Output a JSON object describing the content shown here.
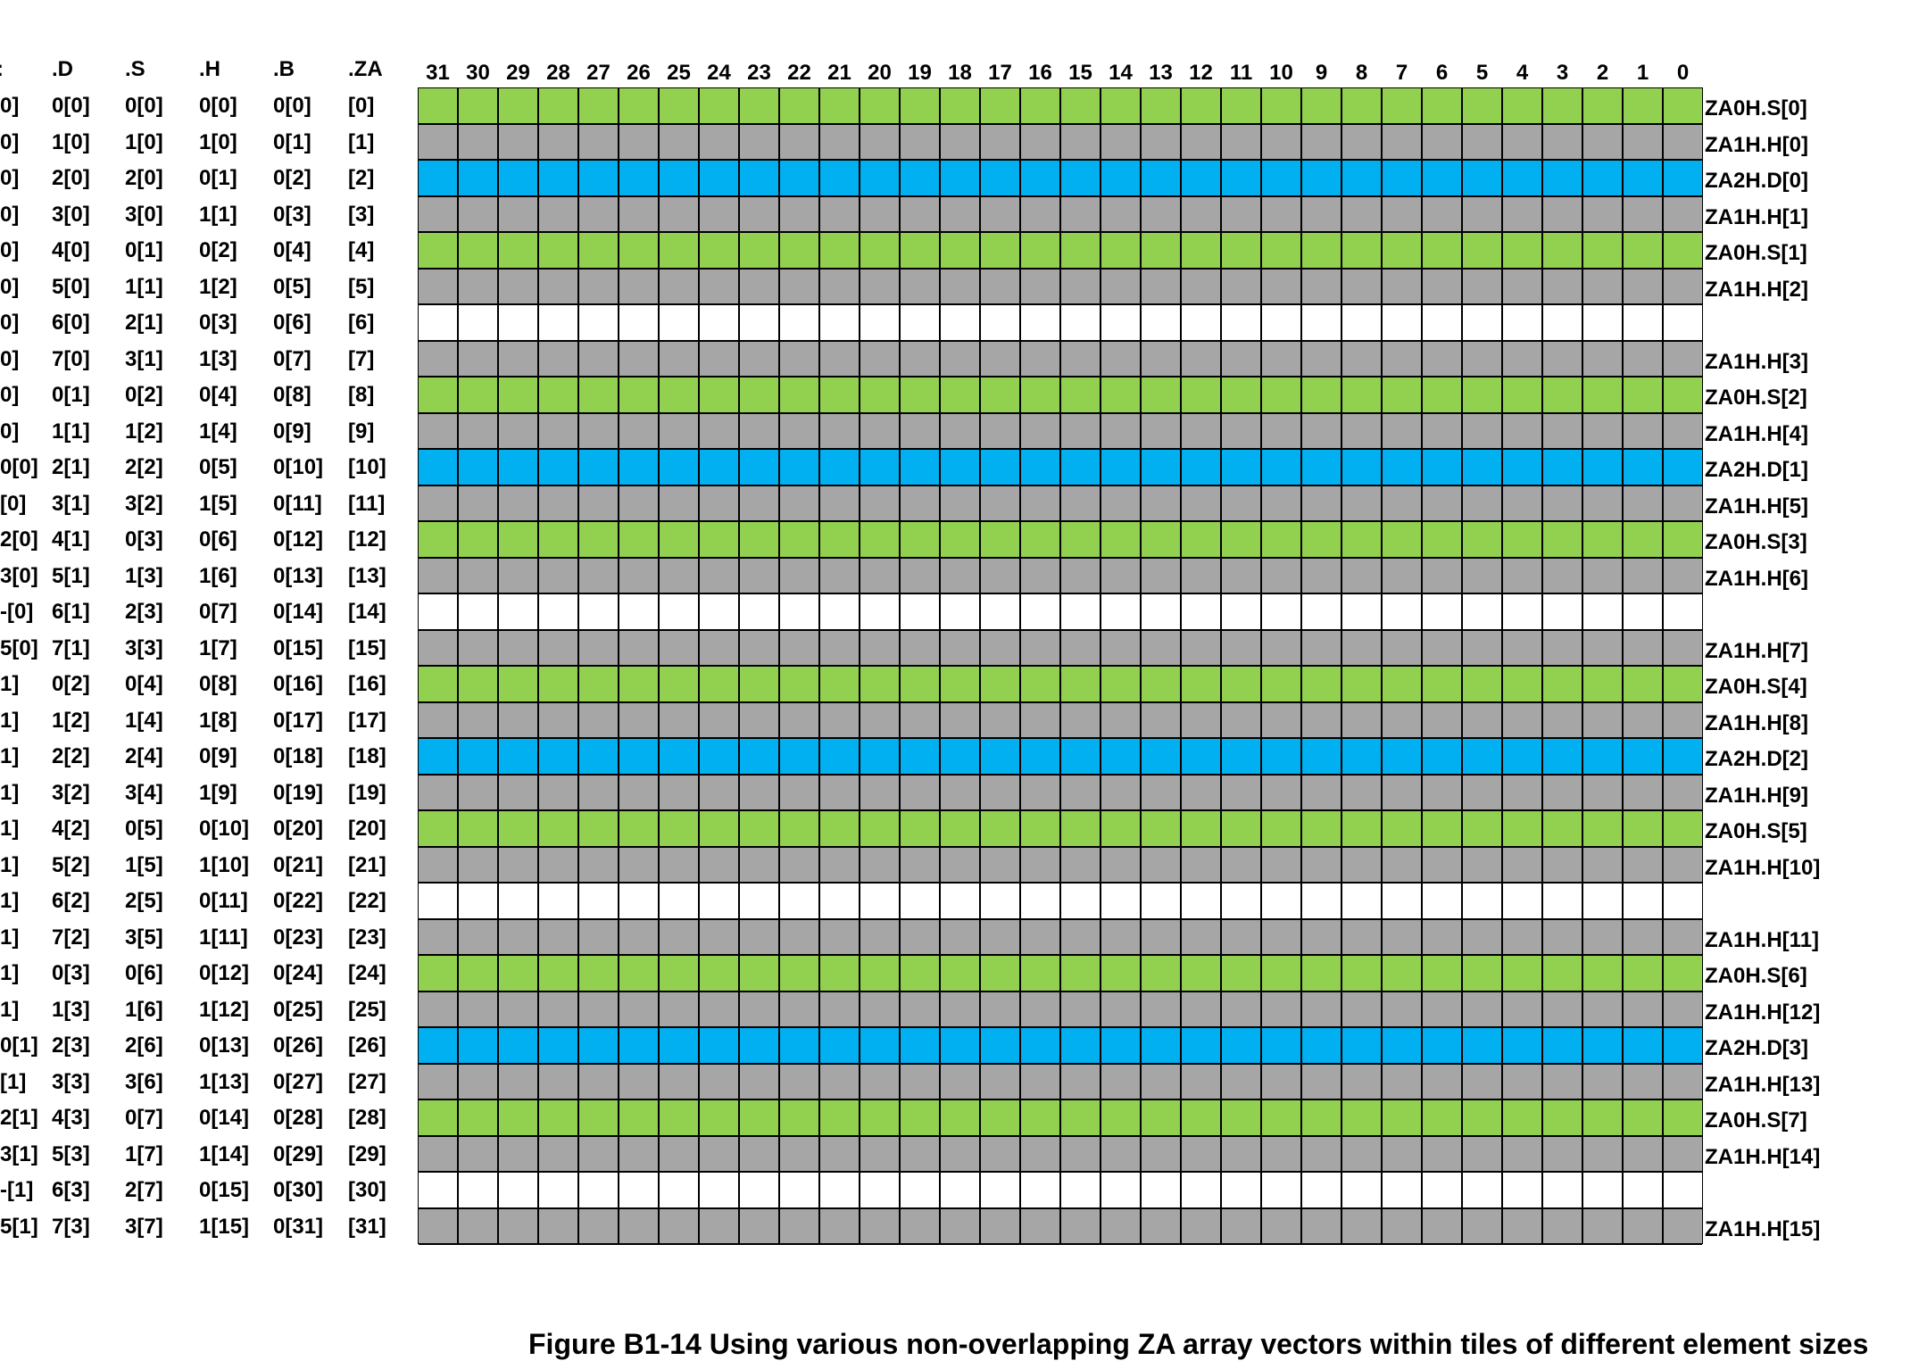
{
  "headers": [
    ".D",
    ".S",
    ".H",
    ".B",
    ".ZA"
  ],
  "bit_headers": [
    "31",
    "30",
    "29",
    "28",
    "27",
    "26",
    "25",
    "24",
    "23",
    "22",
    "21",
    "20",
    "19",
    "18",
    "17",
    "16",
    "15",
    "14",
    "13",
    "12",
    "11",
    "10",
    "9",
    "8",
    "7",
    "6",
    "5",
    "4",
    "3",
    "2",
    "1",
    "0"
  ],
  "rows": [
    {
      "q": "0]",
      "d": "0[0]",
      "s": "0[0]",
      "h": "0[0]",
      "b": "0[0]",
      "za": "[0]",
      "fill": "green",
      "label": "ZA0H.S[0]"
    },
    {
      "q": "0]",
      "d": "1[0]",
      "s": "1[0]",
      "h": "1[0]",
      "b": "0[1]",
      "za": "[1]",
      "fill": "gray",
      "label": "ZA1H.H[0]"
    },
    {
      "q": "0]",
      "d": "2[0]",
      "s": "2[0]",
      "h": "0[1]",
      "b": "0[2]",
      "za": "[2]",
      "fill": "blue",
      "label": "ZA2H.D[0]"
    },
    {
      "q": "0]",
      "d": "3[0]",
      "s": "3[0]",
      "h": "1[1]",
      "b": "0[3]",
      "za": "[3]",
      "fill": "gray",
      "label": "ZA1H.H[1]"
    },
    {
      "q": "0]",
      "d": "4[0]",
      "s": "0[1]",
      "h": "0[2]",
      "b": "0[4]",
      "za": "[4]",
      "fill": "green",
      "label": "ZA0H.S[1]"
    },
    {
      "q": "0]",
      "d": "5[0]",
      "s": "1[1]",
      "h": "1[2]",
      "b": "0[5]",
      "za": "[5]",
      "fill": "gray",
      "label": "ZA1H.H[2]"
    },
    {
      "q": "0]",
      "d": "6[0]",
      "s": "2[1]",
      "h": "0[3]",
      "b": "0[6]",
      "za": "[6]",
      "fill": "white",
      "label": ""
    },
    {
      "q": "0]",
      "d": "7[0]",
      "s": "3[1]",
      "h": "1[3]",
      "b": "0[7]",
      "za": "[7]",
      "fill": "gray",
      "label": "ZA1H.H[3]"
    },
    {
      "q": "0]",
      "d": "0[1]",
      "s": "0[2]",
      "h": "0[4]",
      "b": "0[8]",
      "za": "[8]",
      "fill": "green",
      "label": "ZA0H.S[2]"
    },
    {
      "q": "0]",
      "d": "1[1]",
      "s": "1[2]",
      "h": "1[4]",
      "b": "0[9]",
      "za": "[9]",
      "fill": "gray",
      "label": "ZA1H.H[4]"
    },
    {
      "q": "0[0]",
      "d": "2[1]",
      "s": "2[2]",
      "h": "0[5]",
      "b": "0[10]",
      "za": "[10]",
      "fill": "blue",
      "label": "ZA2H.D[1]"
    },
    {
      "q": "[0]",
      "d": "3[1]",
      "s": "3[2]",
      "h": "1[5]",
      "b": "0[11]",
      "za": "[11]",
      "fill": "gray",
      "label": "ZA1H.H[5]"
    },
    {
      "q": "2[0]",
      "d": "4[1]",
      "s": "0[3]",
      "h": "0[6]",
      "b": "0[12]",
      "za": "[12]",
      "fill": "green",
      "label": "ZA0H.S[3]"
    },
    {
      "q": "3[0]",
      "d": "5[1]",
      "s": "1[3]",
      "h": "1[6]",
      "b": "0[13]",
      "za": "[13]",
      "fill": "gray",
      "label": "ZA1H.H[6]"
    },
    {
      "q": "-[0]",
      "d": "6[1]",
      "s": "2[3]",
      "h": "0[7]",
      "b": "0[14]",
      "za": "[14]",
      "fill": "white",
      "label": ""
    },
    {
      "q": "5[0]",
      "d": "7[1]",
      "s": "3[3]",
      "h": "1[7]",
      "b": "0[15]",
      "za": "[15]",
      "fill": "gray",
      "label": "ZA1H.H[7]"
    },
    {
      "q": "1]",
      "d": "0[2]",
      "s": "0[4]",
      "h": "0[8]",
      "b": "0[16]",
      "za": "[16]",
      "fill": "green",
      "label": "ZA0H.S[4]"
    },
    {
      "q": "1]",
      "d": "1[2]",
      "s": "1[4]",
      "h": "1[8]",
      "b": "0[17]",
      "za": "[17]",
      "fill": "gray",
      "label": "ZA1H.H[8]"
    },
    {
      "q": "1]",
      "d": "2[2]",
      "s": "2[4]",
      "h": "0[9]",
      "b": "0[18]",
      "za": "[18]",
      "fill": "blue",
      "label": "ZA2H.D[2]"
    },
    {
      "q": "1]",
      "d": "3[2]",
      "s": "3[4]",
      "h": "1[9]",
      "b": "0[19]",
      "za": "[19]",
      "fill": "gray",
      "label": "ZA1H.H[9]"
    },
    {
      "q": "1]",
      "d": "4[2]",
      "s": "0[5]",
      "h": "0[10]",
      "b": "0[20]",
      "za": "[20]",
      "fill": "green",
      "label": "ZA0H.S[5]"
    },
    {
      "q": "1]",
      "d": "5[2]",
      "s": "1[5]",
      "h": "1[10]",
      "b": "0[21]",
      "za": "[21]",
      "fill": "gray",
      "label": "ZA1H.H[10]"
    },
    {
      "q": "1]",
      "d": "6[2]",
      "s": "2[5]",
      "h": "0[11]",
      "b": "0[22]",
      "za": "[22]",
      "fill": "white",
      "label": ""
    },
    {
      "q": "1]",
      "d": "7[2]",
      "s": "3[5]",
      "h": "1[11]",
      "b": "0[23]",
      "za": "[23]",
      "fill": "gray",
      "label": "ZA1H.H[11]"
    },
    {
      "q": "1]",
      "d": "0[3]",
      "s": "0[6]",
      "h": "0[12]",
      "b": "0[24]",
      "za": "[24]",
      "fill": "green",
      "label": "ZA0H.S[6]"
    },
    {
      "q": "1]",
      "d": "1[3]",
      "s": "1[6]",
      "h": "1[12]",
      "b": "0[25]",
      "za": "[25]",
      "fill": "gray",
      "label": "ZA1H.H[12]"
    },
    {
      "q": "0[1]",
      "d": "2[3]",
      "s": "2[6]",
      "h": "0[13]",
      "b": "0[26]",
      "za": "[26]",
      "fill": "blue",
      "label": "ZA2H.D[3]"
    },
    {
      "q": "[1]",
      "d": "3[3]",
      "s": "3[6]",
      "h": "1[13]",
      "b": "0[27]",
      "za": "[27]",
      "fill": "gray",
      "label": "ZA1H.H[13]"
    },
    {
      "q": "2[1]",
      "d": "4[3]",
      "s": "0[7]",
      "h": "0[14]",
      "b": "0[28]",
      "za": "[28]",
      "fill": "green",
      "label": "ZA0H.S[7]"
    },
    {
      "q": "3[1]",
      "d": "5[3]",
      "s": "1[7]",
      "h": "1[14]",
      "b": "0[29]",
      "za": "[29]",
      "fill": "gray",
      "label": "ZA1H.H[14]"
    },
    {
      "q": "-[1]",
      "d": "6[3]",
      "s": "2[7]",
      "h": "0[15]",
      "b": "0[30]",
      "za": "[30]",
      "fill": "white",
      "label": ""
    },
    {
      "q": "5[1]",
      "d": "7[3]",
      "s": "3[7]",
      "h": "1[15]",
      "b": "0[31]",
      "za": "[31]",
      "fill": "gray",
      "label": "ZA1H.H[15]"
    }
  ],
  "colors": {
    "green": "#92d050",
    "gray": "#a6a6a6",
    "blue": "#00b0f0",
    "white": "#ffffff"
  },
  "caption": "Figure B1-14 Using various non-overlapping ZA array vectors within tiles of different element sizes"
}
